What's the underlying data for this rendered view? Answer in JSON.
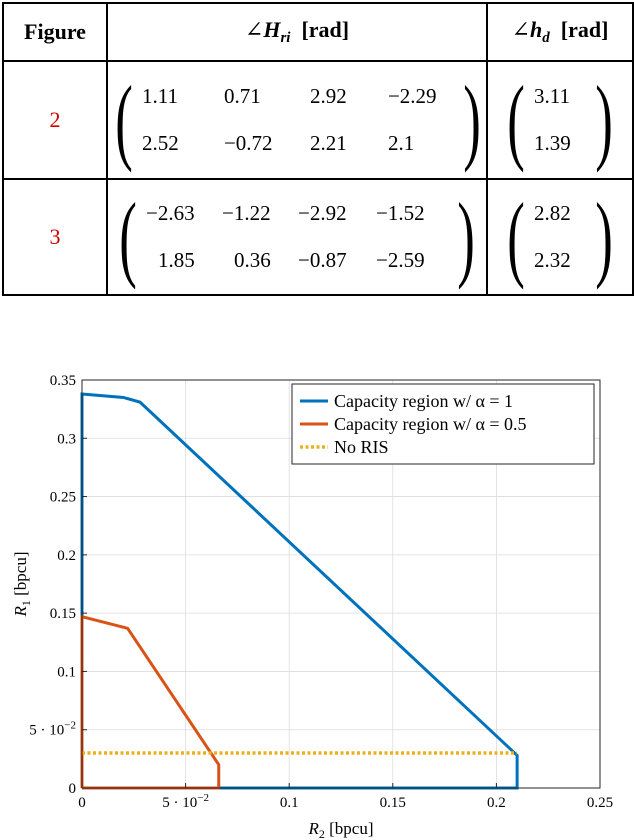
{
  "table": {
    "headers": {
      "figure": "Figure",
      "h_ri_symbol": "∠",
      "h_ri_var": "H",
      "h_ri_sub": "ri",
      "h_ri_unit": "[rad]",
      "h_d_symbol": "∠",
      "h_d_var": "h",
      "h_d_sub": "d",
      "h_d_unit": "[rad]"
    },
    "rows": [
      {
        "figure": "2",
        "H": [
          [
            "1.11",
            "0.71",
            "2.92",
            "−2.29"
          ],
          [
            "2.52",
            "−0.72",
            "2.21",
            "2.1"
          ]
        ],
        "h": [
          "3.11",
          "1.39"
        ]
      },
      {
        "figure": "3",
        "H": [
          [
            "−2.63",
            "−1.22",
            "−2.92",
            "−1.52"
          ],
          [
            "1.85",
            "0.36",
            "−0.87",
            "−2.59"
          ]
        ],
        "h": [
          "2.82",
          "2.32"
        ]
      }
    ]
  },
  "chart_data": {
    "type": "line",
    "xlabel_var": "R",
    "xlabel_sub": "2",
    "xlabel_unit": "[bpcu]",
    "ylabel_var": "R",
    "ylabel_sub": "1",
    "ylabel_unit": "[bpcu]",
    "xlim": [
      0,
      0.25
    ],
    "ylim": [
      0,
      0.35
    ],
    "grid": true,
    "legend_position": "top-right",
    "x_ticks": [
      {
        "value": 0,
        "label": "0"
      },
      {
        "value": 0.05,
        "label": "5 · 10",
        "exp": "−2"
      },
      {
        "value": 0.1,
        "label": "0.1"
      },
      {
        "value": 0.15,
        "label": "0.15"
      },
      {
        "value": 0.2,
        "label": "0.2"
      },
      {
        "value": 0.25,
        "label": "0.25"
      }
    ],
    "y_ticks": [
      {
        "value": 0,
        "label": "0"
      },
      {
        "value": 0.05,
        "label": "5 · 10",
        "exp": "−2"
      },
      {
        "value": 0.1,
        "label": "0.1"
      },
      {
        "value": 0.15,
        "label": "0.15"
      },
      {
        "value": 0.2,
        "label": "0.2"
      },
      {
        "value": 0.25,
        "label": "0.25"
      },
      {
        "value": 0.3,
        "label": "0.3"
      },
      {
        "value": 0.35,
        "label": "0.35"
      }
    ],
    "series": [
      {
        "name": "Capacity region w/ α = 1",
        "color": "#0072BD",
        "dash": "solid",
        "points": [
          [
            0,
            0
          ],
          [
            0,
            0.338
          ],
          [
            0.02,
            0.335
          ],
          [
            0.028,
            0.331
          ],
          [
            0.21,
            0.028
          ],
          [
            0.21,
            0
          ],
          [
            0,
            0
          ]
        ]
      },
      {
        "name": "Capacity region w/ α = 0.5",
        "color": "#D95319",
        "dash": "solid",
        "points": [
          [
            0,
            0
          ],
          [
            0,
            0.147
          ],
          [
            0.022,
            0.137
          ],
          [
            0.066,
            0.02
          ],
          [
            0.066,
            0
          ],
          [
            0,
            0
          ]
        ]
      },
      {
        "name": "No RIS",
        "color": "#EDB120",
        "dash": "dotted",
        "points": [
          [
            0,
            0.03
          ],
          [
            0.21,
            0.03
          ]
        ]
      }
    ]
  }
}
